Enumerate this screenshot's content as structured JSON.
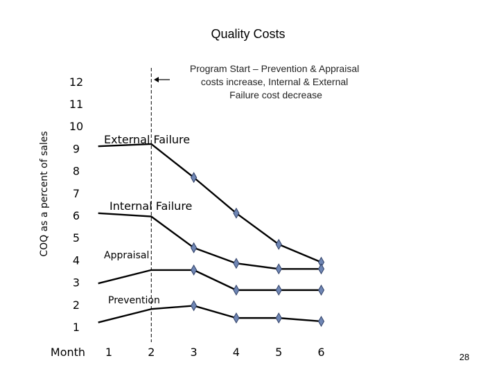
{
  "page_number": "28",
  "chart_data": {
    "type": "line",
    "title": "Quality Costs",
    "xlabel": "Month",
    "ylabel": "COQ as a percent of sales",
    "x": [
      0.75,
      2,
      3,
      4,
      5,
      6
    ],
    "x_ticks": [
      1,
      2,
      3,
      4,
      5,
      6
    ],
    "y_ticks": [
      1,
      2,
      3,
      4,
      5,
      6,
      7,
      8,
      9,
      10,
      11,
      12
    ],
    "ylim": [
      0.5,
      12.5
    ],
    "grid": false,
    "legend": "none",
    "series": [
      {
        "name": "External Failure",
        "values": [
          9.1,
          9.2,
          7.7,
          6.1,
          4.7,
          3.9
        ]
      },
      {
        "name": "Internal Failure",
        "values": [
          6.1,
          5.95,
          4.55,
          3.85,
          3.6,
          3.6
        ]
      },
      {
        "name": "Appraisal",
        "values": [
          2.95,
          3.55,
          3.55,
          2.65,
          2.65,
          2.65
        ]
      },
      {
        "name": "Prevention",
        "values": [
          1.2,
          1.8,
          1.95,
          1.4,
          1.4,
          1.25
        ]
      }
    ],
    "program_start_x": 2,
    "annotation": "Program Start – Prevention & Appraisal costs increase, Internal & External Failure cost decrease",
    "annotation_lines": [
      "Program Start – Prevention & Appraisal",
      "costs increase, Internal & External",
      "Failure cost decrease"
    ],
    "colors": {
      "line": "#000000",
      "marker_fill": "#6f86b4",
      "marker_stroke": "#2f3f66"
    }
  }
}
